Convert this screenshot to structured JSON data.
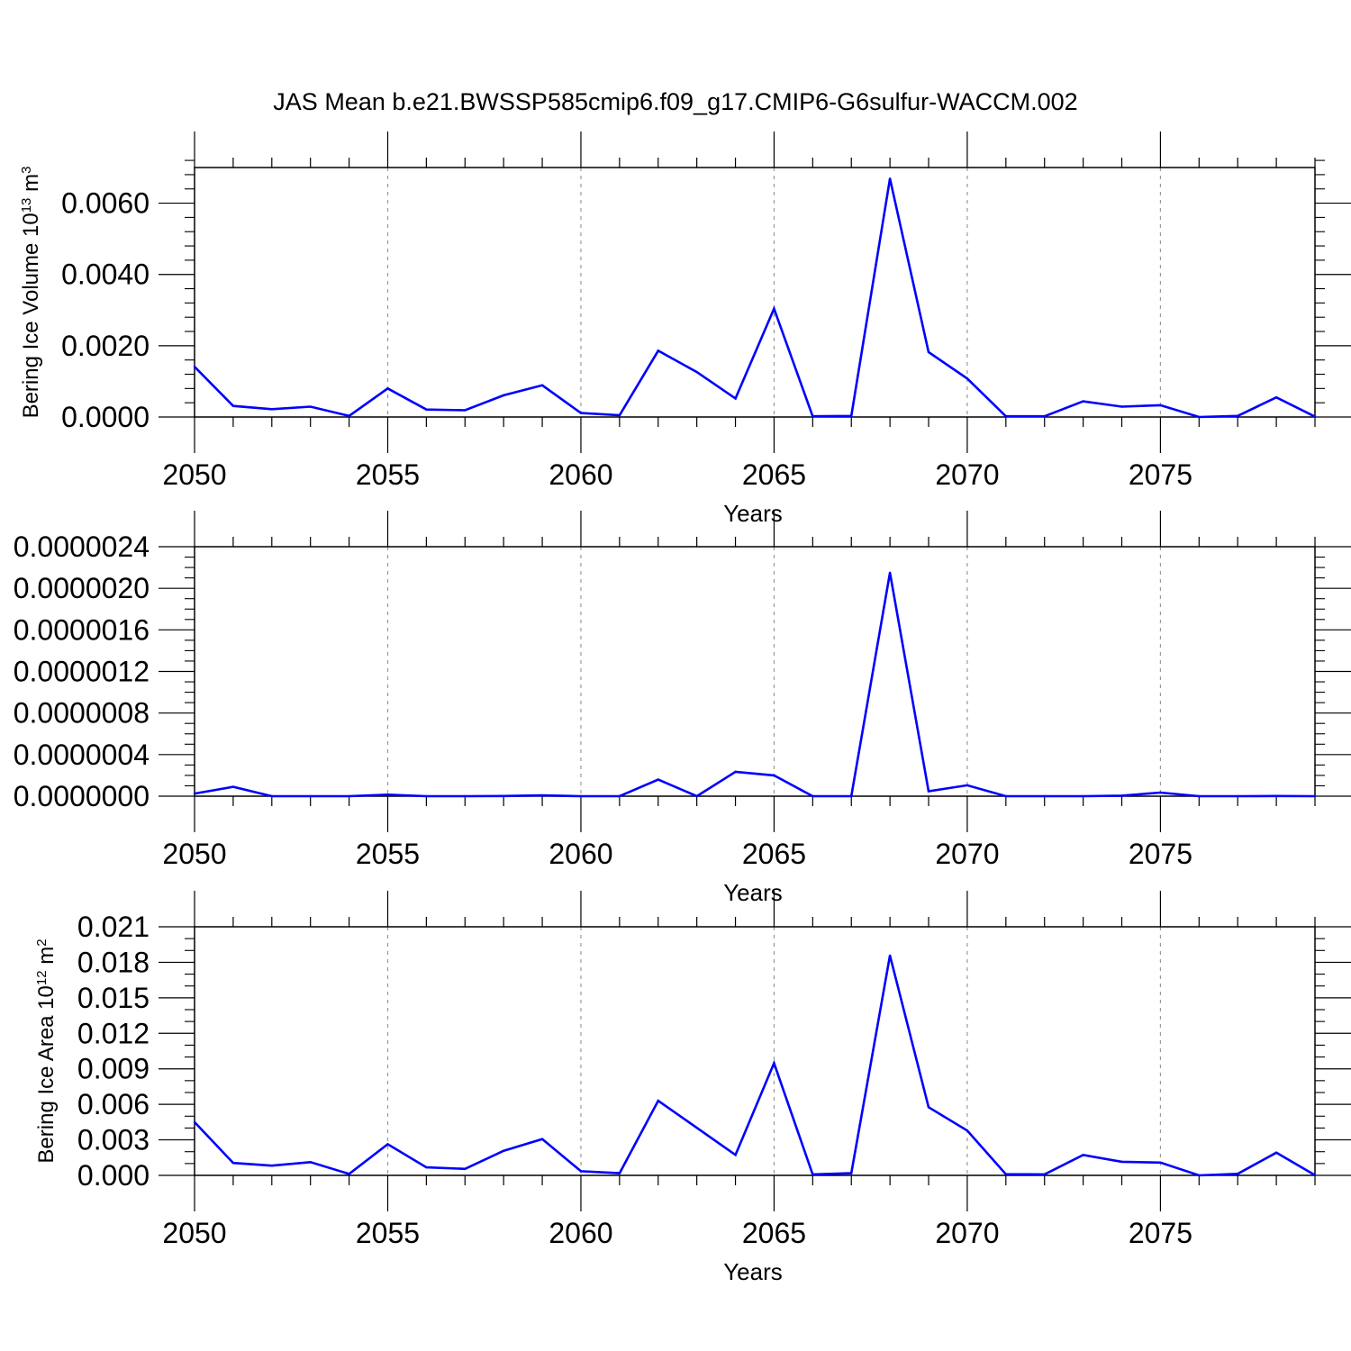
{
  "title": "JAS Mean b.e21.BWSSP585cmip6.f09_g17.CMIP6-G6sulfur-WACCM.002",
  "colors": {
    "line": "#0000ff",
    "grid": "#999999",
    "frame": "#000000"
  },
  "chart_data": [
    {
      "type": "line",
      "xlabel": "Years",
      "ylabel": {
        "text": "Bering Ice Volume 10",
        "sup": "13",
        "unit": " m",
        "unit_sup": "3"
      },
      "xlim": [
        2050,
        2079
      ],
      "ylim": [
        0.0,
        0.007
      ],
      "x_ticks": [
        "2050",
        "2055",
        "2060",
        "2065",
        "2070",
        "2075"
      ],
      "x_tick_values": [
        2050,
        2055,
        2060,
        2065,
        2070,
        2075
      ],
      "y_ticks": [
        "0.0000",
        "0.0020",
        "0.0040",
        "0.0060"
      ],
      "y_tick_values": [
        0.0,
        0.002,
        0.004,
        0.006
      ],
      "y_minor_step": 0.0004,
      "x_grid": "dashed at major ticks",
      "x": [
        2050,
        2051,
        2052,
        2053,
        2054,
        2055,
        2056,
        2057,
        2058,
        2059,
        2060,
        2061,
        2062,
        2063,
        2064,
        2065,
        2066,
        2067,
        2068,
        2069,
        2070,
        2071,
        2072,
        2073,
        2074,
        2075,
        2076,
        2077,
        2078,
        2079
      ],
      "values": [
        0.00141,
        0.00031,
        0.00022,
        0.00029,
        3e-05,
        0.0008,
        0.00021,
        0.00019,
        0.00061,
        0.00089,
        0.00011,
        5e-05,
        0.00186,
        0.00126,
        0.00052,
        0.00304,
        2e-05,
        3e-05,
        0.00669,
        0.00182,
        0.00108,
        2e-05,
        2e-05,
        0.00044,
        0.00029,
        0.00033,
        0.0,
        3e-05,
        0.00055,
        1e-05
      ]
    },
    {
      "type": "line",
      "xlabel": "Years",
      "ylabel": null,
      "xlim": [
        2050,
        2079
      ],
      "ylim": [
        0.0,
        2.4e-06
      ],
      "x_ticks": [
        "2050",
        "2055",
        "2060",
        "2065",
        "2070",
        "2075"
      ],
      "x_tick_values": [
        2050,
        2055,
        2060,
        2065,
        2070,
        2075
      ],
      "y_ticks": [
        "0.0000000",
        "0.0000004",
        "0.0000008",
        "0.0000012",
        "0.0000016",
        "0.0000020",
        "0.0000024"
      ],
      "y_tick_values": [
        0.0,
        4e-07,
        8e-07,
        1.2e-06,
        1.6e-06,
        2e-06,
        2.4e-06
      ],
      "y_minor_step": 1e-07,
      "x_grid": "dashed at major ticks",
      "x": [
        2050,
        2051,
        2052,
        2053,
        2054,
        2055,
        2056,
        2057,
        2058,
        2059,
        2060,
        2061,
        2062,
        2063,
        2064,
        2065,
        2066,
        2067,
        2068,
        2069,
        2070,
        2071,
        2072,
        2073,
        2074,
        2075,
        2076,
        2077,
        2078,
        2079
      ],
      "values": [
        2.5e-08,
        9e-08,
        0.0,
        0.0,
        0.0,
        1.5e-08,
        0.0,
        0.0,
        2e-09,
        8e-09,
        0.0,
        0.0,
        1.6e-07,
        0.0,
        2.35e-07,
        2e-07,
        0.0,
        0.0,
        2.15e-06,
        4.8e-08,
        1.05e-07,
        0.0,
        0.0,
        0.0,
        5e-09,
        3.5e-08,
        0.0,
        0.0,
        2e-09,
        0.0
      ]
    },
    {
      "type": "line",
      "xlabel": "Years",
      "ylabel": {
        "text": "Bering Ice Area 10",
        "sup": "12",
        "unit": " m",
        "unit_sup": "2"
      },
      "xlim": [
        2050,
        2079
      ],
      "ylim": [
        0.0,
        0.021
      ],
      "x_ticks": [
        "2050",
        "2055",
        "2060",
        "2065",
        "2070",
        "2075"
      ],
      "x_tick_values": [
        2050,
        2055,
        2060,
        2065,
        2070,
        2075
      ],
      "y_ticks": [
        "0.000",
        "0.003",
        "0.006",
        "0.009",
        "0.012",
        "0.015",
        "0.018",
        "0.021"
      ],
      "y_tick_values": [
        0.0,
        0.003,
        0.006,
        0.009,
        0.012,
        0.015,
        0.018,
        0.021
      ],
      "y_minor_step": 0.001,
      "x_grid": "dashed at major ticks",
      "x": [
        2050,
        2051,
        2052,
        2053,
        2054,
        2055,
        2056,
        2057,
        2058,
        2059,
        2060,
        2061,
        2062,
        2063,
        2064,
        2065,
        2066,
        2067,
        2068,
        2069,
        2070,
        2071,
        2072,
        2073,
        2074,
        2075,
        2076,
        2077,
        2078,
        2079
      ],
      "values": [
        0.0045,
        0.00105,
        0.00082,
        0.00112,
        0.00012,
        0.00263,
        0.00068,
        0.00055,
        0.00208,
        0.00307,
        0.00035,
        0.00018,
        0.0063,
        0.00402,
        0.00173,
        0.00948,
        8e-05,
        0.00018,
        0.01857,
        0.00576,
        0.00378,
        0.0001,
        8e-05,
        0.00173,
        0.00115,
        0.00108,
        0.0,
        0.00013,
        0.00192,
        2e-05
      ]
    }
  ]
}
